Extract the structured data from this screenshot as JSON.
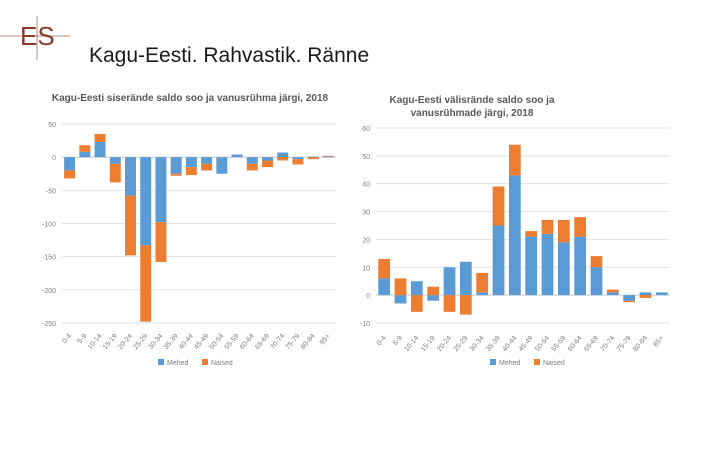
{
  "slide": {
    "logo_text": "ES",
    "title": "Kagu-Eesti. Rahvastik. Ränne"
  },
  "colors": {
    "men": "#5B9BD5",
    "women": "#ED7D31",
    "grid": "#d9d9d9",
    "axis": "#7f7f7f"
  },
  "chart_data": [
    {
      "type": "bar",
      "stacked": true,
      "title": "Kagu-Eesti siserände saldo soo ja vanusrühma järgi, 2018",
      "categories": [
        "0-4",
        "5-9",
        "10-14",
        "15-19",
        "20-24",
        "25-29",
        "30-34",
        "35-39",
        "40-44",
        "45-49",
        "50-54",
        "55-59",
        "60-64",
        "65-69",
        "70-74",
        "75-79",
        "80-84",
        "85+"
      ],
      "series": [
        {
          "name": "Mehed",
          "values": [
            -20,
            8,
            23,
            -10,
            -58,
            -133,
            -98,
            -25,
            -15,
            -10,
            -25,
            4,
            -10,
            -5,
            7,
            -3,
            1,
            1
          ]
        },
        {
          "name": "Naised",
          "values": [
            -12,
            10,
            12,
            -28,
            -90,
            -115,
            -60,
            -3,
            -12,
            -10,
            0,
            0,
            -10,
            -10,
            -5,
            -8,
            -3,
            1
          ]
        }
      ],
      "yticks": [
        50,
        0,
        -50,
        -100,
        -150,
        -200,
        -250
      ],
      "ylim": [
        -250,
        50
      ],
      "grid": true,
      "legend": "bottom"
    },
    {
      "type": "bar",
      "stacked": true,
      "title": "Kagu-Eesti välisrände saldo soo ja vanusrühmade järgi, 2018",
      "categories": [
        "0-4",
        "5-9",
        "10-14",
        "15-19",
        "20-24",
        "25-29",
        "30-34",
        "35-39",
        "40-44",
        "45-49",
        "50-54",
        "55-59",
        "60-64",
        "65-69",
        "70-74",
        "75-79",
        "80-84",
        "85+"
      ],
      "series": [
        {
          "name": "Mehed",
          "values": [
            6,
            -3,
            5,
            -2,
            10,
            12,
            1,
            25,
            43,
            21,
            22,
            19,
            21,
            10,
            1,
            -2,
            1,
            1
          ]
        },
        {
          "name": "Naised",
          "values": [
            7,
            6,
            -6,
            3,
            -6,
            -7,
            7,
            14,
            11,
            2,
            5,
            8,
            7,
            4,
            1,
            -0.5,
            -1,
            0
          ]
        }
      ],
      "yticks": [
        60,
        50,
        40,
        30,
        20,
        10,
        0,
        -10
      ],
      "ylim": [
        -10,
        60
      ],
      "grid": true,
      "legend": "bottom"
    }
  ]
}
